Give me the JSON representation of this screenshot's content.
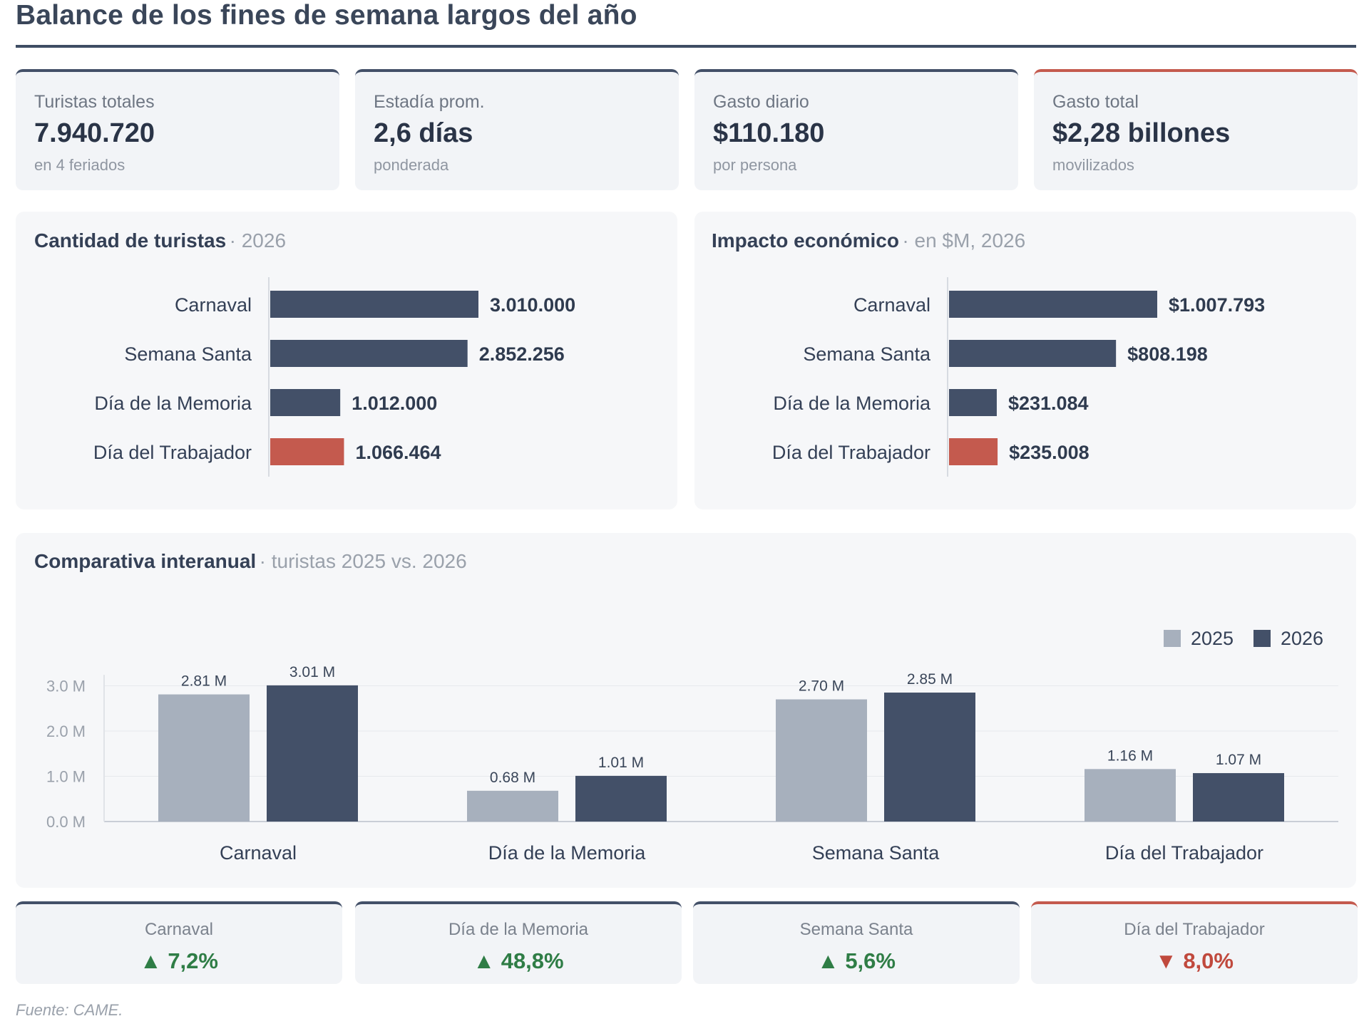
{
  "title": "Balance de los fines de semana largos del año",
  "kpis": [
    {
      "label": "Turistas totales",
      "value": "7.940.720",
      "sub": "en 4 feriados"
    },
    {
      "label": "Estadía prom.",
      "value": "2,6 días",
      "sub": "ponderada"
    },
    {
      "label": "Gasto diario",
      "value": "$110.180",
      "sub": "por persona"
    },
    {
      "label": "Gasto total",
      "value": "$2,28 billones",
      "sub": "movilizados"
    }
  ],
  "colors": {
    "dark": "#435068",
    "light": "#a7b0bd",
    "accent_red": "#c45a4e",
    "up_green": "#2f7d46",
    "down_red": "#c0493d"
  },
  "chart_data": [
    {
      "type": "bar",
      "orientation": "horizontal",
      "title": "Cantidad de turistas",
      "subtitle": "· 2026",
      "categories": [
        "Carnaval",
        "Semana Santa",
        "Día de la Memoria",
        "Día del Trabajador"
      ],
      "values": [
        3010000,
        2852256,
        1012000,
        1066464
      ],
      "value_labels": [
        "3.010.000",
        "2.852.256",
        "1.012.000",
        "1.066.464"
      ],
      "highlight_index": 3
    },
    {
      "type": "bar",
      "orientation": "horizontal",
      "title": "Impacto económico",
      "subtitle": "· en $M, 2026",
      "categories": [
        "Carnaval",
        "Semana Santa",
        "Día de la Memoria",
        "Día del Trabajador"
      ],
      "values": [
        1007793,
        808198,
        231084,
        235008
      ],
      "value_labels": [
        "$1.007.793",
        "$808.198",
        "$231.084",
        "$235.008"
      ],
      "highlight_index": 3
    },
    {
      "type": "bar",
      "title": "Comparativa interanual",
      "subtitle": "· turistas 2025 vs. 2026",
      "categories": [
        "Carnaval",
        "Día de la Memoria",
        "Semana Santa",
        "Día del Trabajador"
      ],
      "series": [
        {
          "name": "2025",
          "values": [
            2.81,
            0.68,
            2.7,
            1.16
          ],
          "labels": [
            "2.81 M",
            "0.68 M",
            "2.70 M",
            "1.16 M"
          ]
        },
        {
          "name": "2026",
          "values": [
            3.01,
            1.01,
            2.85,
            1.07
          ],
          "labels": [
            "3.01 M",
            "1.01 M",
            "2.85 M",
            "1.07 M"
          ]
        }
      ],
      "yticks": [
        "0.0 M",
        "1.0 M",
        "2.0 M",
        "3.0 M"
      ],
      "ylim": [
        0,
        3.4
      ],
      "grid": true,
      "legend": "top-right"
    }
  ],
  "changes": [
    {
      "label": "Carnaval",
      "arrow": "▲",
      "value": "7,2%",
      "direction": "up"
    },
    {
      "label": "Día de la Memoria",
      "arrow": "▲",
      "value": "48,8%",
      "direction": "up"
    },
    {
      "label": "Semana Santa",
      "arrow": "▲",
      "value": "5,6%",
      "direction": "up"
    },
    {
      "label": "Día del Trabajador",
      "arrow": "▼",
      "value": "8,0%",
      "direction": "down"
    }
  ],
  "source": "Fuente: CAME."
}
